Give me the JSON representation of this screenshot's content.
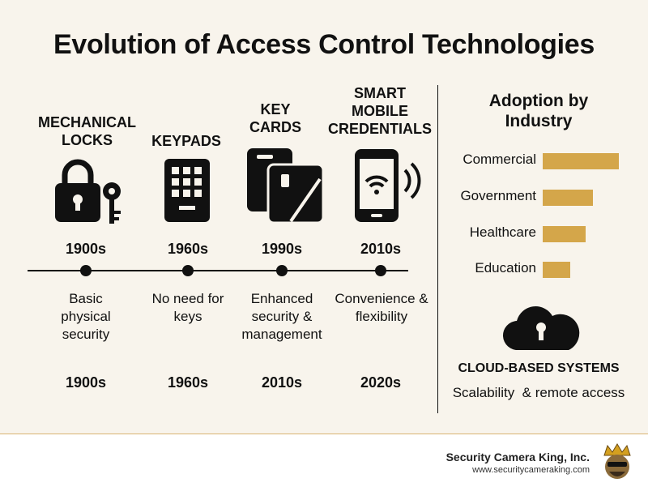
{
  "title": "Evolution of Access Control Technologies",
  "timeline": [
    {
      "label": "MECHANICAL LOCKS",
      "icon": "padlock-key-icon",
      "year_top": "1900s",
      "description": "Basic physical security",
      "year_bottom": "1900s"
    },
    {
      "label": "KEYPADS",
      "icon": "keypad-icon",
      "year_top": "1960s",
      "description": "No need for keys",
      "year_bottom": "1960s"
    },
    {
      "label": "KEY CARDS",
      "icon": "key-cards-icon",
      "year_top": "1990s",
      "description": "Enhanced security & management",
      "year_bottom": "2010s"
    },
    {
      "label": "SMART MOBILE CREDENTIALS",
      "icon": "smartphone-wireless-icon",
      "year_top": "2010s",
      "description": "Convenience & flexibility",
      "year_bottom": "2020s"
    }
  ],
  "adoption": {
    "title": "Adoption by Industry",
    "bar_color": "#d4a64a",
    "industries": [
      {
        "name": "Commercial",
        "value": 1.0
      },
      {
        "name": "Government",
        "value": 0.66
      },
      {
        "name": "Healthcare",
        "value": 0.56
      },
      {
        "name": "Education",
        "value": 0.36
      }
    ]
  },
  "cloud": {
    "icon": "cloud-lock-icon",
    "title": "CLOUD-BASED SYSTEMS",
    "description": "Scalability  & remote access"
  },
  "footer": {
    "company": "Security Camera King, Inc.",
    "website": "www.securitycameraking.com",
    "logo": "king-mascot-logo"
  }
}
